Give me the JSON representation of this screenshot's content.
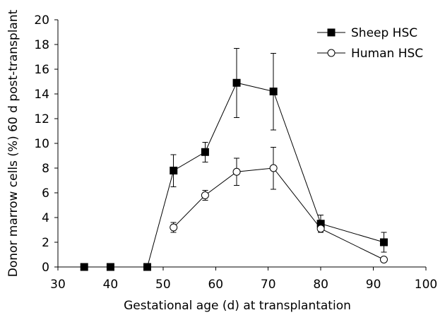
{
  "chart_data": {
    "type": "line",
    "xlabel": "Gestational age (d) at transplantation",
    "ylabel": "Donor marrow cells (%) 60 d post-transplant",
    "xlim": [
      30,
      100
    ],
    "ylim": [
      0,
      20
    ],
    "xticks": [
      30,
      40,
      50,
      60,
      70,
      80,
      90,
      100
    ],
    "yticks": [
      0,
      2,
      4,
      6,
      8,
      10,
      12,
      14,
      16,
      18,
      20
    ],
    "grid": false,
    "legend_position": "top-right",
    "series": [
      {
        "name": "Sheep HSC",
        "marker": "filled-square",
        "color": "#000000",
        "points": [
          {
            "x": 35,
            "y": 0.0,
            "err": 0.0
          },
          {
            "x": 40,
            "y": 0.0,
            "err": 0.0
          },
          {
            "x": 47,
            "y": 0.0,
            "err": 0.0
          },
          {
            "x": 52,
            "y": 7.8,
            "err": 1.3
          },
          {
            "x": 58,
            "y": 9.3,
            "err": 0.8
          },
          {
            "x": 64,
            "y": 14.9,
            "err": 2.8
          },
          {
            "x": 71,
            "y": 14.2,
            "err": 3.1
          },
          {
            "x": 80,
            "y": 3.5,
            "err": 0.7
          },
          {
            "x": 92,
            "y": 2.0,
            "err": 0.8
          }
        ]
      },
      {
        "name": "Human HSC",
        "marker": "open-circle",
        "color": "#000000",
        "points": [
          {
            "x": 52,
            "y": 3.2,
            "err": 0.4
          },
          {
            "x": 58,
            "y": 5.8,
            "err": 0.4
          },
          {
            "x": 64,
            "y": 7.7,
            "err": 1.1
          },
          {
            "x": 71,
            "y": 8.0,
            "err": 1.7
          },
          {
            "x": 80,
            "y": 3.1,
            "err": 0.3
          },
          {
            "x": 92,
            "y": 0.6,
            "err": 0.0
          }
        ]
      }
    ]
  }
}
